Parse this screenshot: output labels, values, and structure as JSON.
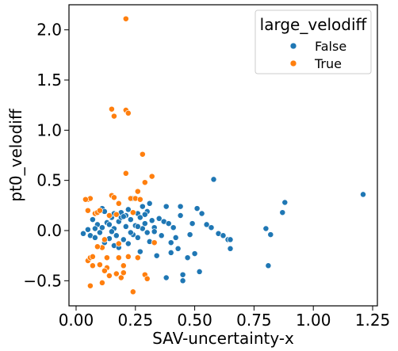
{
  "chart_data": {
    "type": "scatter",
    "xlabel": "SAV-uncertainty-x",
    "ylabel": "pt0_velodiff",
    "xlim": [
      -0.03,
      1.27
    ],
    "ylim": [
      -0.75,
      2.25
    ],
    "xticks": [
      0.0,
      0.25,
      0.5,
      0.75,
      1.0,
      1.25
    ],
    "xtick_labels": [
      "0.00",
      "0.25",
      "0.50",
      "0.75",
      "1.00",
      "1.25"
    ],
    "yticks": [
      -0.5,
      0.0,
      0.5,
      1.0,
      1.5,
      2.0
    ],
    "ytick_labels": [
      "−0.5",
      "0.0",
      "0.5",
      "1.0",
      "1.5",
      "2.0"
    ],
    "grid": false,
    "legend": {
      "title": "large_velodiff",
      "position": "top-right",
      "entries": [
        {
          "label": "False",
          "color": "#1f77b4"
        },
        {
          "label": "True",
          "color": "#ff7f0e"
        }
      ]
    },
    "series": [
      {
        "name": "False",
        "color": "#1f77b4",
        "points": [
          [
            0.03,
            -0.03
          ],
          [
            0.05,
            0.01
          ],
          [
            0.06,
            -0.05
          ],
          [
            0.07,
            0.11
          ],
          [
            0.08,
            -0.07
          ],
          [
            0.09,
            0.06
          ],
          [
            0.1,
            -0.02
          ],
          [
            0.11,
            0.03
          ],
          [
            0.11,
            0.22
          ],
          [
            0.12,
            -0.12
          ],
          [
            0.13,
            0.08
          ],
          [
            0.14,
            -0.08
          ],
          [
            0.15,
            0.13
          ],
          [
            0.16,
            0.02
          ],
          [
            0.16,
            -0.15
          ],
          [
            0.17,
            0.16
          ],
          [
            0.17,
            -0.05
          ],
          [
            0.18,
            0.09
          ],
          [
            0.18,
            -0.17
          ],
          [
            0.19,
            0.13
          ],
          [
            0.2,
            -0.09
          ],
          [
            0.21,
            0.15
          ],
          [
            0.21,
            0.04
          ],
          [
            0.22,
            -0.13
          ],
          [
            0.23,
            0.11
          ],
          [
            0.24,
            -0.04
          ],
          [
            0.24,
            0.32
          ],
          [
            0.25,
            0.05
          ],
          [
            0.26,
            0.17
          ],
          [
            0.26,
            -0.07
          ],
          [
            0.27,
            -0.21
          ],
          [
            0.28,
            0.24
          ],
          [
            0.28,
            0.02
          ],
          [
            0.29,
            0.07
          ],
          [
            0.3,
            -0.02
          ],
          [
            0.3,
            0.19
          ],
          [
            0.31,
            0.27
          ],
          [
            0.31,
            -0.11
          ],
          [
            0.32,
            0.1
          ],
          [
            0.33,
            0.03
          ],
          [
            0.34,
            -0.25
          ],
          [
            0.35,
            0.12
          ],
          [
            0.36,
            -0.05
          ],
          [
            0.37,
            0.09
          ],
          [
            0.38,
            0.24
          ],
          [
            0.38,
            -0.47
          ],
          [
            0.39,
            0.07
          ],
          [
            0.4,
            -0.12
          ],
          [
            0.4,
            -0.22
          ],
          [
            0.41,
            0.03
          ],
          [
            0.42,
            -0.07
          ],
          [
            0.43,
            -0.18
          ],
          [
            0.44,
            0.15
          ],
          [
            0.44,
            0.24
          ],
          [
            0.45,
            -0.44
          ],
          [
            0.45,
            -0.5
          ],
          [
            0.47,
            -0.27
          ],
          [
            0.48,
            -0.04
          ],
          [
            0.49,
            0.07
          ],
          [
            0.5,
            -0.23
          ],
          [
            0.51,
            0.22
          ],
          [
            0.52,
            -0.41
          ],
          [
            0.53,
            0.17
          ],
          [
            0.55,
            0.06
          ],
          [
            0.57,
            0.03
          ],
          [
            0.58,
            0.51
          ],
          [
            0.6,
            -0.03
          ],
          [
            0.62,
            -0.05
          ],
          [
            0.64,
            -0.09
          ],
          [
            0.65,
            -0.18
          ],
          [
            0.65,
            -0.09
          ],
          [
            0.8,
            0.02
          ],
          [
            0.81,
            -0.35
          ],
          [
            0.82,
            -0.04
          ],
          [
            0.87,
            0.18
          ],
          [
            0.88,
            0.28
          ],
          [
            1.21,
            0.36
          ],
          [
            0.12,
            0.19
          ],
          [
            0.15,
            -0.01
          ],
          [
            0.19,
            0.18
          ],
          [
            0.22,
            0.21
          ],
          [
            0.27,
            0.13
          ],
          [
            0.29,
            0.16
          ],
          [
            0.33,
            -0.01
          ],
          [
            0.14,
            0.06
          ],
          [
            0.08,
            0.02
          ],
          [
            0.2,
            0.14
          ],
          [
            0.23,
            -0.02
          ],
          [
            0.26,
            0.04
          ],
          [
            0.16,
            0.17
          ]
        ]
      },
      {
        "name": "True",
        "color": "#ff7f0e",
        "points": [
          [
            0.05,
            0.31
          ],
          [
            0.06,
            0.32
          ],
          [
            0.05,
            0.2
          ],
          [
            0.04,
            0.31
          ],
          [
            0.05,
            -0.3
          ],
          [
            0.06,
            -0.27
          ],
          [
            0.06,
            -0.55
          ],
          [
            0.07,
            -0.26
          ],
          [
            0.08,
            0.17
          ],
          [
            0.09,
            0.18
          ],
          [
            0.1,
            0.2
          ],
          [
            0.1,
            -0.34
          ],
          [
            0.11,
            -0.52
          ],
          [
            0.11,
            -0.17
          ],
          [
            0.12,
            -0.09
          ],
          [
            0.13,
            -0.27
          ],
          [
            0.13,
            -0.37
          ],
          [
            0.14,
            -0.45
          ],
          [
            0.14,
            0.15
          ],
          [
            0.15,
            1.21
          ],
          [
            0.15,
            0.35
          ],
          [
            0.16,
            0.33
          ],
          [
            0.16,
            1.14
          ],
          [
            0.17,
            0.16
          ],
          [
            0.17,
            -0.43
          ],
          [
            0.18,
            -0.27
          ],
          [
            0.18,
            -0.13
          ],
          [
            0.19,
            -0.47
          ],
          [
            0.2,
            -0.35
          ],
          [
            0.2,
            -0.42
          ],
          [
            0.21,
            0.57
          ],
          [
            0.21,
            1.2
          ],
          [
            0.21,
            2.11
          ],
          [
            0.22,
            1.17
          ],
          [
            0.22,
            -0.26
          ],
          [
            0.23,
            0.32
          ],
          [
            0.24,
            -0.61
          ],
          [
            0.25,
            0.32
          ],
          [
            0.26,
            0.39
          ],
          [
            0.27,
            0.31
          ],
          [
            0.28,
            0.76
          ],
          [
            0.29,
            -0.44
          ],
          [
            0.29,
            0.48
          ],
          [
            0.3,
            -0.48
          ],
          [
            0.32,
            0.54
          ],
          [
            0.33,
            -0.12
          ],
          [
            0.12,
            -0.4
          ],
          [
            0.18,
            0.27
          ],
          [
            0.07,
            -0.35
          ],
          [
            0.09,
            -0.16
          ],
          [
            0.26,
            -0.27
          ],
          [
            0.24,
            0.18
          ]
        ]
      }
    ]
  }
}
